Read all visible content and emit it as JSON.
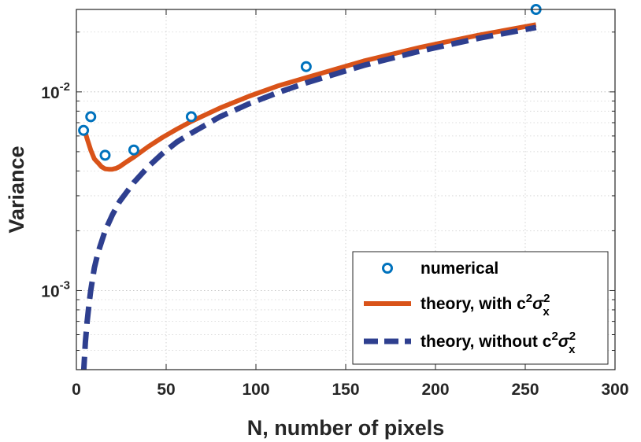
{
  "chart_data": {
    "type": "line",
    "xlabel": "N, number of pixels",
    "ylabel": "Variance",
    "xlim": [
      0,
      300
    ],
    "ylim": [
      0.0004,
      0.026
    ],
    "yscale": "log",
    "grid": true,
    "legend_position": "bottom-right",
    "xticks": [
      0,
      50,
      100,
      150,
      200,
      250,
      300
    ],
    "xtick_labels": [
      "0",
      "50",
      "100",
      "150",
      "200",
      "250",
      "300"
    ],
    "yticks": [
      0.001,
      0.01
    ],
    "ytick_labels": [
      {
        "base": "10",
        "exp": "-3"
      },
      {
        "base": "10",
        "exp": "-2"
      }
    ],
    "series": [
      {
        "name": "numerical",
        "style": "markers",
        "color": "#0072BD",
        "x": [
          4,
          8,
          16,
          32,
          64,
          128,
          256
        ],
        "y": [
          0.0064,
          0.0075,
          0.0048,
          0.0051,
          0.0075,
          0.0134,
          0.026
        ]
      },
      {
        "name": "theory, with c²σx²",
        "label_main": "theory, with c",
        "label_sym": "σ",
        "label_sub": "x",
        "label_sup": "2",
        "style": "solid",
        "color": "#D95319",
        "x": [
          4,
          6,
          8,
          10,
          12,
          14,
          16,
          18,
          20,
          22,
          24,
          28,
          32,
          40,
          48,
          56,
          64,
          80,
          96,
          112,
          128,
          160,
          192,
          224,
          256
        ],
        "y": [
          0.0067,
          0.0058,
          0.0051,
          0.0046,
          0.0044,
          0.0042,
          0.0041,
          0.00408,
          0.00408,
          0.00412,
          0.0042,
          0.00445,
          0.0047,
          0.0053,
          0.0059,
          0.0065,
          0.0071,
          0.0083,
          0.0095,
          0.0107,
          0.0118,
          0.0143,
          0.0168,
          0.0193,
          0.0218
        ]
      },
      {
        "name": "theory, without c²σx²",
        "label_main": "theory, without c",
        "label_sym": "σ",
        "label_sub": "x",
        "label_sup": "2",
        "style": "dashed",
        "color": "#2E3F8F",
        "x": [
          4,
          5,
          6,
          7,
          8,
          10,
          12,
          16,
          20,
          24,
          32,
          40,
          48,
          56,
          64,
          80,
          96,
          112,
          128,
          160,
          192,
          224,
          256
        ],
        "y": [
          0.00038,
          0.00055,
          0.0007,
          0.00085,
          0.001,
          0.0013,
          0.00155,
          0.002,
          0.0024,
          0.0028,
          0.0035,
          0.0042,
          0.0049,
          0.0056,
          0.0062,
          0.0075,
          0.0087,
          0.0099,
          0.0111,
          0.0136,
          0.0161,
          0.0186,
          0.0211
        ]
      }
    ]
  }
}
